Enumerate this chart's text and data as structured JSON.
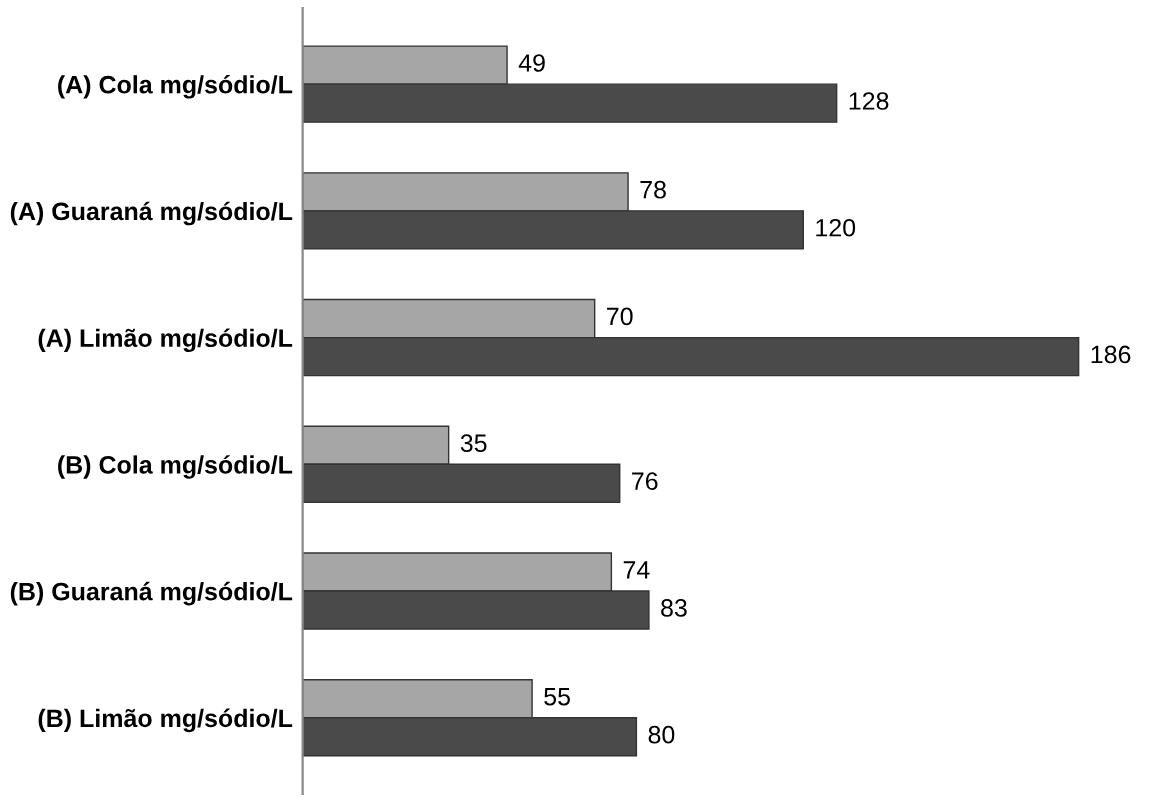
{
  "chart_data": {
    "type": "bar",
    "orientation": "horizontal",
    "categories": [
      "(A) Cola mg/sódio/L",
      "(A) Guaraná mg/sódio/L",
      "(A) Limão mg/sódio/L",
      "(B) Cola mg/sódio/L",
      "(B) Guaraná mg/sódio/L",
      "(B) Limão mg/sódio/L"
    ],
    "series": [
      {
        "color": "#a6a6a6",
        "values": [
          49,
          78,
          70,
          35,
          74,
          55
        ]
      },
      {
        "color": "#4a4a4a",
        "values": [
          128,
          120,
          186,
          76,
          83,
          80
        ]
      }
    ],
    "data_labels": true,
    "grid": false,
    "legend": false
  }
}
